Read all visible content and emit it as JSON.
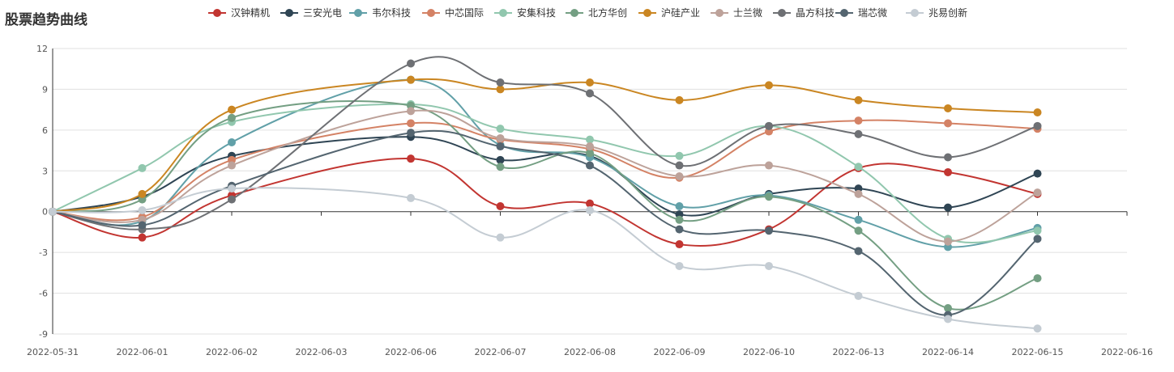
{
  "chart_data": {
    "type": "line",
    "title": "股票趋势曲线",
    "categories": [
      "2022-05-31",
      "2022-06-01",
      "2022-06-02",
      "2022-06-03",
      "2022-06-06",
      "2022-06-07",
      "2022-06-08",
      "2022-06-09",
      "2022-06-10",
      "2022-06-13",
      "2022-06-14",
      "2022-06-15",
      "2022-06-16"
    ],
    "ylim": [
      -9,
      12
    ],
    "yticks": [
      12,
      9,
      6,
      3,
      0,
      -3,
      -6,
      -9
    ],
    "grid": true,
    "legend_position": "top",
    "series": [
      {
        "name": "汉钟精机",
        "color": "#c23531",
        "points": [
          [
            "2022-05-31",
            0
          ],
          [
            "2022-06-01",
            -1.9
          ],
          [
            "2022-06-02",
            1.2
          ],
          [
            "2022-06-06",
            3.9
          ],
          [
            "2022-06-07",
            0.4
          ],
          [
            "2022-06-08",
            0.6
          ],
          [
            "2022-06-09",
            -2.4
          ],
          [
            "2022-06-10",
            -1.3
          ],
          [
            "2022-06-13",
            3.2
          ],
          [
            "2022-06-14",
            2.9
          ],
          [
            "2022-06-15",
            1.3
          ]
        ]
      },
      {
        "name": "三安光电",
        "color": "#2f4554",
        "points": [
          [
            "2022-05-31",
            0
          ],
          [
            "2022-06-01",
            1.1
          ],
          [
            "2022-06-02",
            4.1
          ],
          [
            "2022-06-06",
            5.5
          ],
          [
            "2022-06-07",
            3.8
          ],
          [
            "2022-06-08",
            4.1
          ],
          [
            "2022-06-09",
            -0.2
          ],
          [
            "2022-06-10",
            1.3
          ],
          [
            "2022-06-13",
            1.7
          ],
          [
            "2022-06-14",
            0.3
          ],
          [
            "2022-06-15",
            2.8
          ]
        ]
      },
      {
        "name": "韦尔科技",
        "color": "#61a0a8",
        "points": [
          [
            "2022-05-31",
            0
          ],
          [
            "2022-06-01",
            -0.7
          ],
          [
            "2022-06-02",
            5.1
          ],
          [
            "2022-06-06",
            9.7
          ],
          [
            "2022-06-07",
            4.9
          ],
          [
            "2022-06-08",
            4.0
          ],
          [
            "2022-06-09",
            0.4
          ],
          [
            "2022-06-10",
            1.2
          ],
          [
            "2022-06-13",
            -0.6
          ],
          [
            "2022-06-14",
            -2.6
          ],
          [
            "2022-06-15",
            -1.2
          ]
        ]
      },
      {
        "name": "中芯国际",
        "color": "#d48265",
        "points": [
          [
            "2022-05-31",
            0
          ],
          [
            "2022-06-01",
            -0.4
          ],
          [
            "2022-06-02",
            3.8
          ],
          [
            "2022-06-06",
            6.5
          ],
          [
            "2022-06-07",
            5.3
          ],
          [
            "2022-06-08",
            4.6
          ],
          [
            "2022-06-09",
            2.5
          ],
          [
            "2022-06-10",
            5.9
          ],
          [
            "2022-06-13",
            6.7
          ],
          [
            "2022-06-14",
            6.5
          ],
          [
            "2022-06-15",
            6.1
          ]
        ]
      },
      {
        "name": "安集科技",
        "color": "#91c7ae",
        "points": [
          [
            "2022-05-31",
            0
          ],
          [
            "2022-06-01",
            3.2
          ],
          [
            "2022-06-02",
            6.6
          ],
          [
            "2022-06-06",
            7.9
          ],
          [
            "2022-06-07",
            6.1
          ],
          [
            "2022-06-08",
            5.3
          ],
          [
            "2022-06-09",
            4.1
          ],
          [
            "2022-06-10",
            6.3
          ],
          [
            "2022-06-13",
            3.3
          ],
          [
            "2022-06-14",
            -2.0
          ],
          [
            "2022-06-15",
            -1.4
          ]
        ]
      },
      {
        "name": "北方华创",
        "color": "#749f83",
        "points": [
          [
            "2022-05-31",
            0
          ],
          [
            "2022-06-01",
            0.9
          ],
          [
            "2022-06-02",
            6.9
          ],
          [
            "2022-06-06",
            7.8
          ],
          [
            "2022-06-07",
            3.3
          ],
          [
            "2022-06-08",
            4.3
          ],
          [
            "2022-06-09",
            -0.6
          ],
          [
            "2022-06-10",
            1.1
          ],
          [
            "2022-06-13",
            -1.4
          ],
          [
            "2022-06-14",
            -7.1
          ],
          [
            "2022-06-15",
            -4.9
          ]
        ]
      },
      {
        "name": "沪硅产业",
        "color": "#ca8622",
        "points": [
          [
            "2022-05-31",
            0
          ],
          [
            "2022-06-01",
            1.3
          ],
          [
            "2022-06-02",
            7.5
          ],
          [
            "2022-06-06",
            9.7
          ],
          [
            "2022-06-07",
            9.0
          ],
          [
            "2022-06-08",
            9.5
          ],
          [
            "2022-06-09",
            8.2
          ],
          [
            "2022-06-10",
            9.3
          ],
          [
            "2022-06-13",
            8.2
          ],
          [
            "2022-06-14",
            7.6
          ],
          [
            "2022-06-15",
            7.3
          ]
        ]
      },
      {
        "name": "士兰微",
        "color": "#bda29a",
        "points": [
          [
            "2022-05-31",
            0
          ],
          [
            "2022-06-01",
            -0.6
          ],
          [
            "2022-06-02",
            3.4
          ],
          [
            "2022-06-06",
            7.4
          ],
          [
            "2022-06-07",
            5.4
          ],
          [
            "2022-06-08",
            4.8
          ],
          [
            "2022-06-09",
            2.6
          ],
          [
            "2022-06-10",
            3.4
          ],
          [
            "2022-06-13",
            1.3
          ],
          [
            "2022-06-14",
            -2.2
          ],
          [
            "2022-06-15",
            1.4
          ]
        ]
      },
      {
        "name": "晶方科技",
        "color": "#6e7074",
        "points": [
          [
            "2022-05-31",
            0
          ],
          [
            "2022-06-01",
            -1.3
          ],
          [
            "2022-06-02",
            0.9
          ],
          [
            "2022-06-06",
            10.9
          ],
          [
            "2022-06-07",
            9.5
          ],
          [
            "2022-06-08",
            8.7
          ],
          [
            "2022-06-09",
            3.4
          ],
          [
            "2022-06-10",
            6.3
          ],
          [
            "2022-06-13",
            5.7
          ],
          [
            "2022-06-14",
            4.0
          ],
          [
            "2022-06-15",
            6.3
          ]
        ]
      },
      {
        "name": "瑞芯微",
        "color": "#546570",
        "points": [
          [
            "2022-05-31",
            0
          ],
          [
            "2022-06-01",
            -1.0
          ],
          [
            "2022-06-02",
            1.9
          ],
          [
            "2022-06-06",
            5.8
          ],
          [
            "2022-06-07",
            4.8
          ],
          [
            "2022-06-08",
            3.4
          ],
          [
            "2022-06-09",
            -1.3
          ],
          [
            "2022-06-10",
            -1.4
          ],
          [
            "2022-06-13",
            -2.9
          ],
          [
            "2022-06-14",
            -7.6
          ],
          [
            "2022-06-15",
            -2.0
          ]
        ]
      },
      {
        "name": "兆易创新",
        "color": "#c4ccd3",
        "points": [
          [
            "2022-05-31",
            0
          ],
          [
            "2022-06-01",
            0.1
          ],
          [
            "2022-06-02",
            1.7
          ],
          [
            "2022-06-06",
            1.0
          ],
          [
            "2022-06-07",
            -1.9
          ],
          [
            "2022-06-08",
            0.1
          ],
          [
            "2022-06-09",
            -4.0
          ],
          [
            "2022-06-10",
            -4.0
          ],
          [
            "2022-06-13",
            -6.2
          ],
          [
            "2022-06-14",
            -7.9
          ],
          [
            "2022-06-15",
            -8.6
          ]
        ]
      }
    ]
  }
}
